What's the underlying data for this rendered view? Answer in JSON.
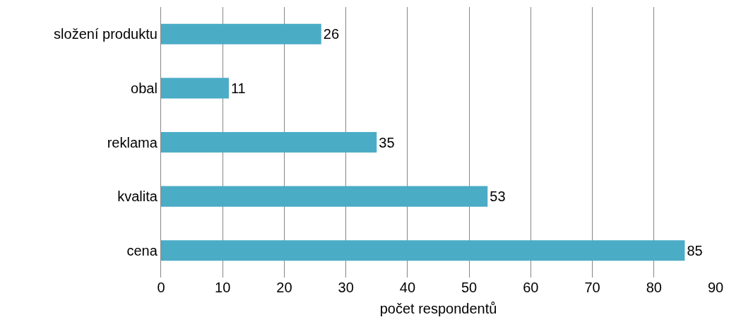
{
  "chart_data": {
    "type": "bar",
    "orientation": "horizontal",
    "categories": [
      "složení produktu",
      "obal",
      "reklama",
      "kvalita",
      "cena"
    ],
    "values": [
      26,
      11,
      35,
      53,
      85
    ],
    "color": "#4bacc6",
    "xlim": [
      0,
      90
    ],
    "xticks": [
      0,
      10,
      20,
      30,
      40,
      50,
      60,
      70,
      80,
      90
    ],
    "grid": "x",
    "data_labels": true,
    "legend": false,
    "xlabel": "počet respondentů"
  }
}
